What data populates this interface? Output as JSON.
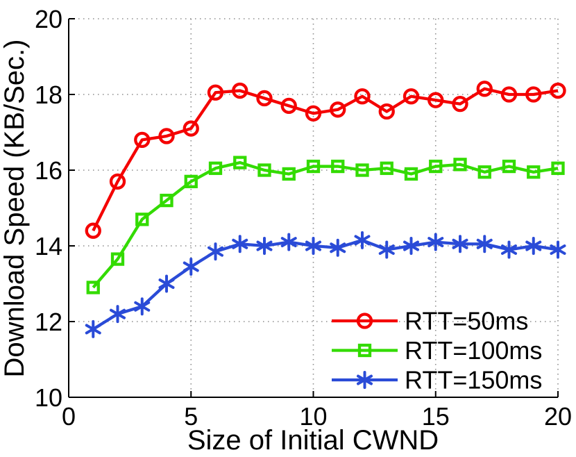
{
  "chart_data": {
    "type": "line",
    "title": "",
    "xlabel": "Size of Initial CWND",
    "ylabel": "Download Speed (KB/Sec.)",
    "x": [
      1,
      2,
      3,
      4,
      5,
      6,
      7,
      8,
      9,
      10,
      11,
      12,
      13,
      14,
      15,
      16,
      17,
      18,
      19,
      20
    ],
    "series": [
      {
        "name": "RTT=50ms",
        "color": "#f40000",
        "marker": "circle",
        "values": [
          14.4,
          15.7,
          16.8,
          16.9,
          17.1,
          18.05,
          18.1,
          17.9,
          17.7,
          17.5,
          17.6,
          17.95,
          17.55,
          17.95,
          17.85,
          17.75,
          18.15,
          18.0,
          18.0,
          18.1
        ]
      },
      {
        "name": "RTT=100ms",
        "color": "#33db00",
        "marker": "square",
        "values": [
          12.9,
          13.65,
          14.7,
          15.2,
          15.7,
          16.05,
          16.2,
          16.0,
          15.9,
          16.1,
          16.1,
          16.0,
          16.05,
          15.9,
          16.1,
          16.15,
          15.95,
          16.1,
          15.95,
          16.05
        ]
      },
      {
        "name": "RTT=150ms",
        "color": "#2a4bd7",
        "marker": "asterisk",
        "values": [
          11.8,
          12.2,
          12.4,
          13.0,
          13.45,
          13.85,
          14.05,
          14.0,
          14.1,
          14.0,
          13.95,
          14.15,
          13.9,
          14.0,
          14.1,
          14.05,
          14.05,
          13.9,
          14.0,
          13.9
        ]
      }
    ],
    "xlim": [
      0,
      20
    ],
    "ylim": [
      10,
      20
    ],
    "xticks": [
      0,
      5,
      10,
      15,
      20
    ],
    "yticks": [
      10,
      12,
      14,
      16,
      18,
      20
    ],
    "x_gridlines": [
      5,
      10,
      15,
      20
    ],
    "y_gridlines": [
      12,
      14,
      16,
      18,
      20
    ],
    "grid": "dotted",
    "grid_color": "#8c8c8c",
    "legend_position": "lower right"
  }
}
